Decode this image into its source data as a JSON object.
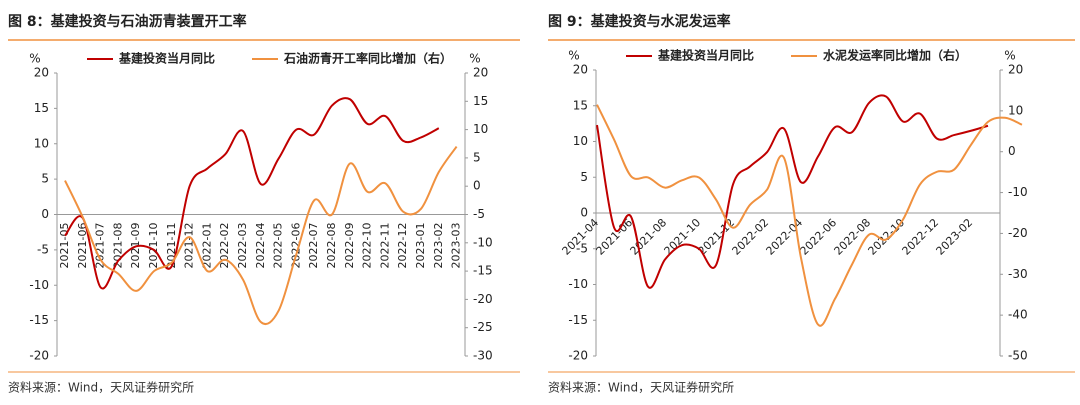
{
  "chart_data": [
    {
      "type": "line",
      "title": "图 8：基建投资与石油沥青装置开工率",
      "ylabel": "%",
      "y2label": "%",
      "source": "资料来源：Wind，天风证券研究所",
      "label_rotation": -90,
      "categories": [
        "2021-05",
        "2021-06",
        "2021-07",
        "2021-08",
        "2021-09",
        "2021-10",
        "2021-11",
        "2021-12",
        "2022-01",
        "2022-02",
        "2022-03",
        "2022-04",
        "2022-05",
        "2022-06",
        "2022-07",
        "2022-08",
        "2022-09",
        "2022-10",
        "2022-11",
        "2022-12",
        "2023-01",
        "2023-02",
        "2023-03"
      ],
      "series": [
        {
          "name": "基建投资当月同比",
          "color": "#c00000",
          "values": [
            -3,
            -0.5,
            -10.3,
            -6.5,
            -4.5,
            -5,
            -7.3,
            4,
            6.5,
            8.5,
            11.8,
            4.3,
            7.9,
            12,
            11.3,
            15.4,
            16.3,
            12.8,
            13.9,
            10.4,
            10.9,
            12.2,
            null
          ]
        },
        {
          "name": "石油沥青开工率同比增加（右）",
          "color": "#f0913f",
          "axis": "y2",
          "values": [
            1,
            -5.5,
            -13,
            -15.5,
            -18.5,
            -15,
            -13.5,
            -9,
            -15,
            -13,
            -16.5,
            -24,
            -22,
            -12,
            -2.5,
            -5,
            4,
            -1,
            0.5,
            -4.5,
            -4,
            2.5,
            7
          ]
        }
      ],
      "ylim": [
        -20,
        20
      ],
      "yticks": [
        -20,
        -15,
        -10,
        -5,
        0,
        5,
        10,
        15,
        20
      ],
      "y2lim": [
        -30,
        20
      ],
      "y2ticks": [
        -30,
        -25,
        -20,
        -15,
        -10,
        -5,
        0,
        5,
        10,
        15,
        20
      ]
    },
    {
      "type": "line",
      "title": "图 9：基建投资与水泥发运率",
      "ylabel": "%",
      "y2label": "%",
      "source": "资料来源：Wind，天风证券研究所",
      "label_rotation": -45,
      "categories": [
        "2021-04",
        null,
        "2021-06",
        null,
        "2021-08",
        null,
        "2021-10",
        null,
        "2021-12",
        null,
        "2022-02",
        null,
        "2022-04",
        null,
        "2022-06",
        null,
        "2022-08",
        null,
        "2022-10",
        null,
        "2022-12",
        null,
        "2023-02",
        null,
        null,
        null
      ],
      "series": [
        {
          "name": "基建投资当月同比",
          "color": "#c00000",
          "values": [
            12.3,
            -2,
            -0.5,
            -10.3,
            -6.5,
            -4.5,
            -5,
            -7.3,
            4,
            6.5,
            8.5,
            11.8,
            4.3,
            7.9,
            12,
            11.3,
            15.4,
            16.3,
            12.8,
            13.9,
            10.4,
            10.9,
            11.5,
            12.2,
            null,
            null
          ]
        },
        {
          "name": "水泥发运率同比增加（右）",
          "color": "#f0913f",
          "axis": "y2",
          "values": [
            11.5,
            3,
            -6,
            -6.3,
            -8.8,
            -7,
            -6.3,
            -11.7,
            -18.6,
            -13,
            -9.3,
            -1.5,
            -26,
            -42.3,
            -36,
            -27.6,
            -20.3,
            -21.5,
            -16.6,
            -8,
            -4.9,
            -4.4,
            1.7,
            7.3,
            8.3,
            6.6
          ]
        }
      ],
      "ylim": [
        -20,
        20
      ],
      "yticks": [
        -20,
        -15,
        -10,
        -5,
        0,
        5,
        10,
        15,
        20
      ],
      "y2lim": [
        -50,
        20
      ],
      "y2ticks": [
        -50,
        -40,
        -30,
        -20,
        -10,
        0,
        10,
        20
      ]
    }
  ]
}
